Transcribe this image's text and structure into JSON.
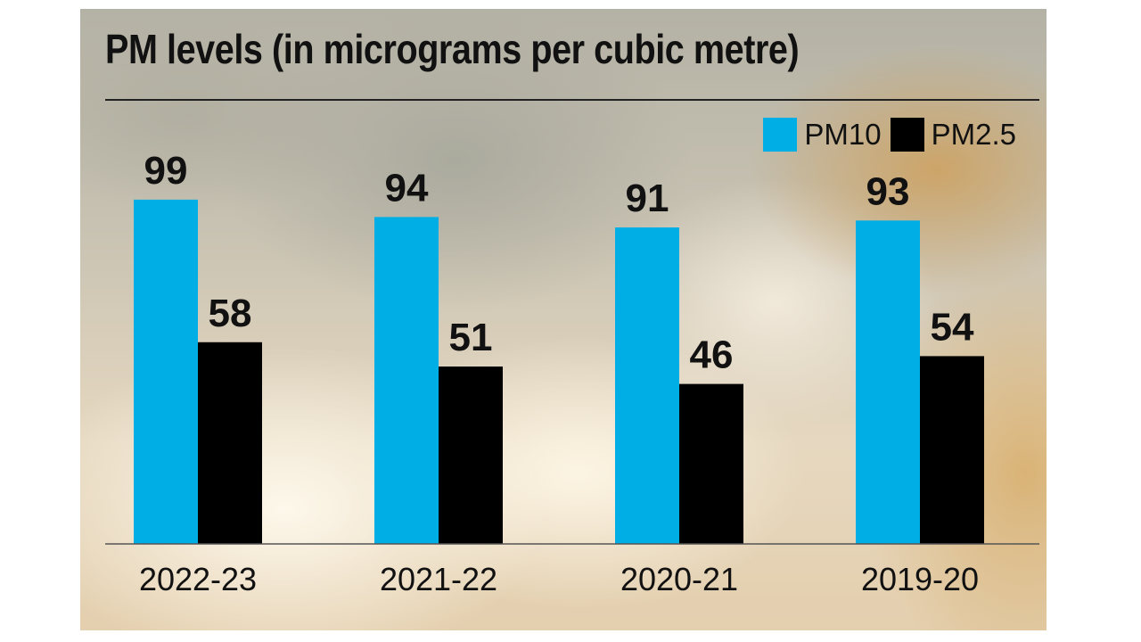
{
  "chart_data": {
    "type": "bar",
    "title": "PM levels (in micrograms per cubic metre)",
    "categories": [
      "2022-23",
      "2021-22",
      "2020-21",
      "2019-20"
    ],
    "series": [
      {
        "name": "PM10",
        "values": [
          99,
          94,
          91,
          93
        ],
        "color": "#00aee6"
      },
      {
        "name": "PM2.5",
        "values": [
          58,
          51,
          46,
          54
        ],
        "color": "#000000"
      }
    ],
    "xlabel": "",
    "ylabel": "",
    "grid": false,
    "legend_position": "top-right",
    "data_labels": true
  }
}
